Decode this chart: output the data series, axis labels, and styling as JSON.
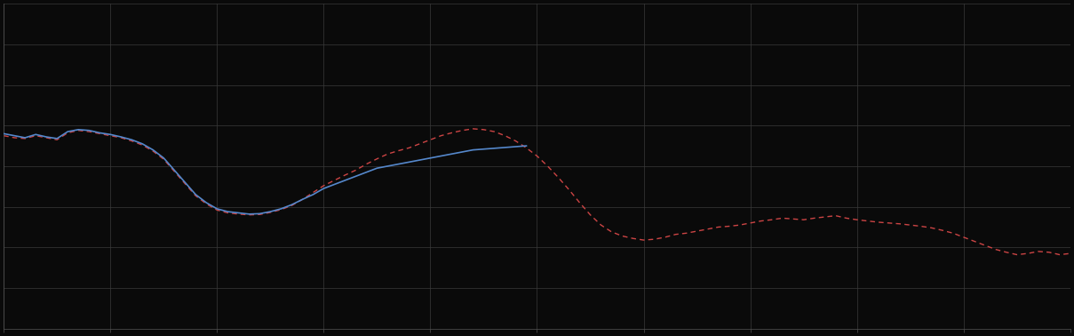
{
  "background_color": "#0a0a0a",
  "plot_background": "#0a0a0a",
  "grid_color": "#3a3a3a",
  "blue_line_color": "#5588cc",
  "red_line_color": "#cc4444",
  "xlim": [
    0,
    100
  ],
  "ylim": [
    0,
    8
  ],
  "x_ticks": [
    0,
    10,
    20,
    30,
    40,
    50,
    60,
    70,
    80,
    90,
    100
  ],
  "y_ticks": [
    0,
    1,
    2,
    3,
    4,
    5,
    6,
    7,
    8
  ],
  "blue_x": [
    0,
    1,
    2,
    3,
    4,
    5,
    6,
    7,
    8,
    9,
    10,
    11,
    12,
    13,
    14,
    15,
    16,
    17,
    18,
    19,
    20,
    21,
    22,
    23,
    24,
    25,
    26,
    27,
    28,
    29,
    30,
    31,
    32,
    33,
    34,
    35,
    36,
    37,
    38,
    39,
    40,
    41,
    42,
    43,
    44,
    45,
    46,
    47,
    48,
    49
  ],
  "blue_y": [
    4.8,
    4.75,
    4.7,
    4.78,
    4.72,
    4.68,
    4.85,
    4.9,
    4.88,
    4.82,
    4.78,
    4.72,
    4.65,
    4.55,
    4.4,
    4.2,
    3.9,
    3.6,
    3.3,
    3.1,
    2.95,
    2.88,
    2.85,
    2.82,
    2.83,
    2.88,
    2.95,
    3.05,
    3.18,
    3.3,
    3.45,
    3.55,
    3.65,
    3.75,
    3.85,
    3.95,
    4.0,
    4.05,
    4.1,
    4.15,
    4.2,
    4.25,
    4.3,
    4.35,
    4.4,
    4.42,
    4.44,
    4.46,
    4.48,
    4.5
  ],
  "red_x": [
    0,
    1,
    2,
    3,
    4,
    5,
    6,
    7,
    8,
    9,
    10,
    11,
    12,
    13,
    14,
    15,
    16,
    17,
    18,
    19,
    20,
    21,
    22,
    23,
    24,
    25,
    26,
    27,
    28,
    29,
    30,
    31,
    32,
    33,
    34,
    35,
    36,
    37,
    38,
    39,
    40,
    41,
    42,
    43,
    44,
    45,
    46,
    47,
    48,
    49,
    50,
    51,
    52,
    53,
    54,
    55,
    56,
    57,
    58,
    59,
    60,
    61,
    62,
    63,
    64,
    65,
    66,
    67,
    68,
    69,
    70,
    71,
    72,
    73,
    74,
    75,
    76,
    77,
    78,
    79,
    80,
    81,
    82,
    83,
    84,
    85,
    86,
    87,
    88,
    89,
    90,
    91,
    92,
    93,
    94,
    95,
    96,
    97,
    98,
    99,
    100
  ],
  "red_y": [
    4.75,
    4.7,
    4.68,
    4.75,
    4.7,
    4.65,
    4.82,
    4.88,
    4.85,
    4.8,
    4.75,
    4.7,
    4.62,
    4.52,
    4.37,
    4.17,
    3.87,
    3.57,
    3.27,
    3.07,
    2.92,
    2.85,
    2.82,
    2.8,
    2.81,
    2.86,
    2.93,
    3.03,
    3.18,
    3.35,
    3.52,
    3.65,
    3.78,
    3.9,
    4.05,
    4.18,
    4.3,
    4.38,
    4.45,
    4.55,
    4.65,
    4.75,
    4.82,
    4.88,
    4.92,
    4.9,
    4.85,
    4.75,
    4.62,
    4.45,
    4.25,
    4.0,
    3.72,
    3.42,
    3.1,
    2.8,
    2.55,
    2.38,
    2.28,
    2.22,
    2.18,
    2.2,
    2.25,
    2.32,
    2.35,
    2.4,
    2.45,
    2.5,
    2.52,
    2.55,
    2.6,
    2.65,
    2.68,
    2.72,
    2.7,
    2.68,
    2.72,
    2.75,
    2.78,
    2.72,
    2.68,
    2.65,
    2.62,
    2.6,
    2.58,
    2.55,
    2.52,
    2.48,
    2.42,
    2.35,
    2.25,
    2.15,
    2.05,
    1.95,
    1.88,
    1.82,
    1.85,
    1.9,
    1.88,
    1.82,
    1.85
  ]
}
